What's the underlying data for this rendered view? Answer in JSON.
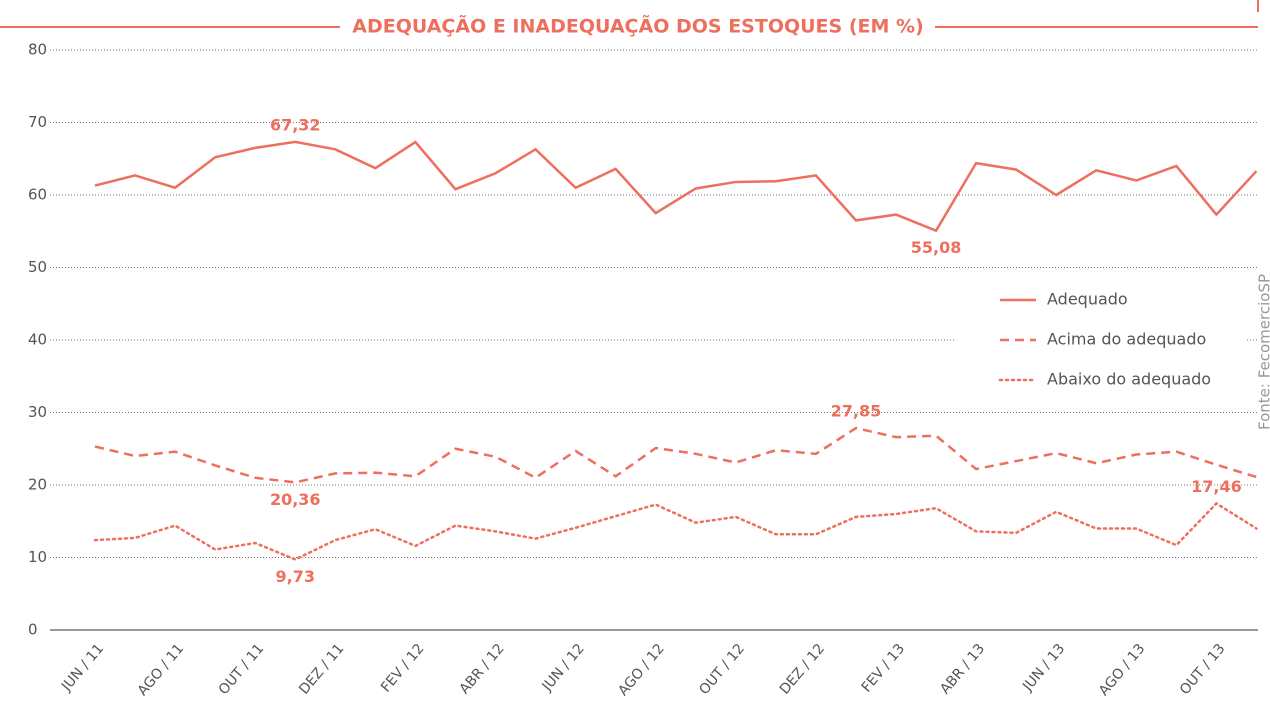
{
  "chart_data": {
    "type": "line",
    "title": "ADEQUAÇÃO E INADEQUAÇÃO DOS ESTOQUES (EM %)",
    "source": "Fonte: FecomercioSP",
    "categories": [
      "JUN / 11",
      null,
      "AGO / 11",
      null,
      "OUT / 11",
      null,
      "DEZ / 11",
      null,
      "FEV / 12",
      null,
      "ABR / 12",
      null,
      "JUN / 12",
      null,
      "AGO / 12",
      null,
      "OUT / 12",
      null,
      "DEZ / 12",
      null,
      "FEV / 13",
      null,
      "ABR / 13",
      null,
      "JUN / 13",
      null,
      "AGO / 13",
      null,
      "OUT / 13",
      null
    ],
    "ylim": [
      0,
      80
    ],
    "yticks": [
      0,
      10,
      20,
      30,
      40,
      50,
      60,
      70,
      80
    ],
    "grid": true,
    "series": [
      {
        "name": "Adequado",
        "color": "#ee6f5e",
        "style": "solid",
        "values": [
          61.3,
          62.7,
          61.0,
          65.2,
          66.5,
          67.32,
          66.3,
          63.7,
          67.3,
          60.8,
          63.0,
          66.3,
          61.0,
          63.6,
          57.5,
          60.9,
          61.8,
          61.9,
          62.7,
          56.5,
          57.3,
          55.08,
          64.4,
          63.5,
          60.0,
          63.4,
          62.0,
          64.0,
          57.3,
          63.3
        ],
        "value_labels": [
          null,
          null,
          null,
          null,
          null,
          "67,32",
          null,
          null,
          null,
          null,
          null,
          null,
          null,
          null,
          null,
          null,
          null,
          null,
          null,
          null,
          null,
          "55,08",
          null,
          null,
          null,
          null,
          null,
          null,
          null,
          null
        ]
      },
      {
        "name": "Acima do adequado",
        "color": "#ee6f5e",
        "style": "dashed",
        "values": [
          25.3,
          24.0,
          24.6,
          22.7,
          21.0,
          20.36,
          21.6,
          21.7,
          21.2,
          25.0,
          23.9,
          21.0,
          24.7,
          21.2,
          25.1,
          24.3,
          23.1,
          24.8,
          24.3,
          27.85,
          26.6,
          26.8,
          22.2,
          23.3,
          24.4,
          23.0,
          24.2,
          24.6,
          22.8,
          21.1
        ],
        "value_labels": [
          null,
          null,
          null,
          null,
          null,
          "20,36",
          null,
          null,
          null,
          null,
          null,
          null,
          null,
          null,
          null,
          null,
          null,
          null,
          null,
          "27,85",
          null,
          null,
          null,
          null,
          null,
          null,
          null,
          null,
          null,
          null
        ]
      },
      {
        "name": "Abaixo do adequado",
        "color": "#ee6f5e",
        "style": "dotted",
        "values": [
          12.4,
          12.7,
          14.4,
          11.1,
          12.0,
          9.73,
          12.4,
          13.9,
          11.6,
          14.4,
          13.6,
          12.6,
          14.1,
          15.7,
          17.3,
          14.8,
          15.6,
          13.2,
          13.2,
          15.6,
          16.0,
          16.8,
          13.6,
          13.4,
          16.3,
          14.0,
          14.0,
          11.7,
          17.46,
          14.0
        ],
        "value_labels": [
          null,
          null,
          null,
          null,
          null,
          "9,73",
          null,
          null,
          null,
          null,
          null,
          null,
          null,
          null,
          null,
          null,
          null,
          null,
          null,
          null,
          null,
          null,
          null,
          null,
          null,
          null,
          null,
          null,
          "17,46",
          null
        ]
      }
    ]
  }
}
